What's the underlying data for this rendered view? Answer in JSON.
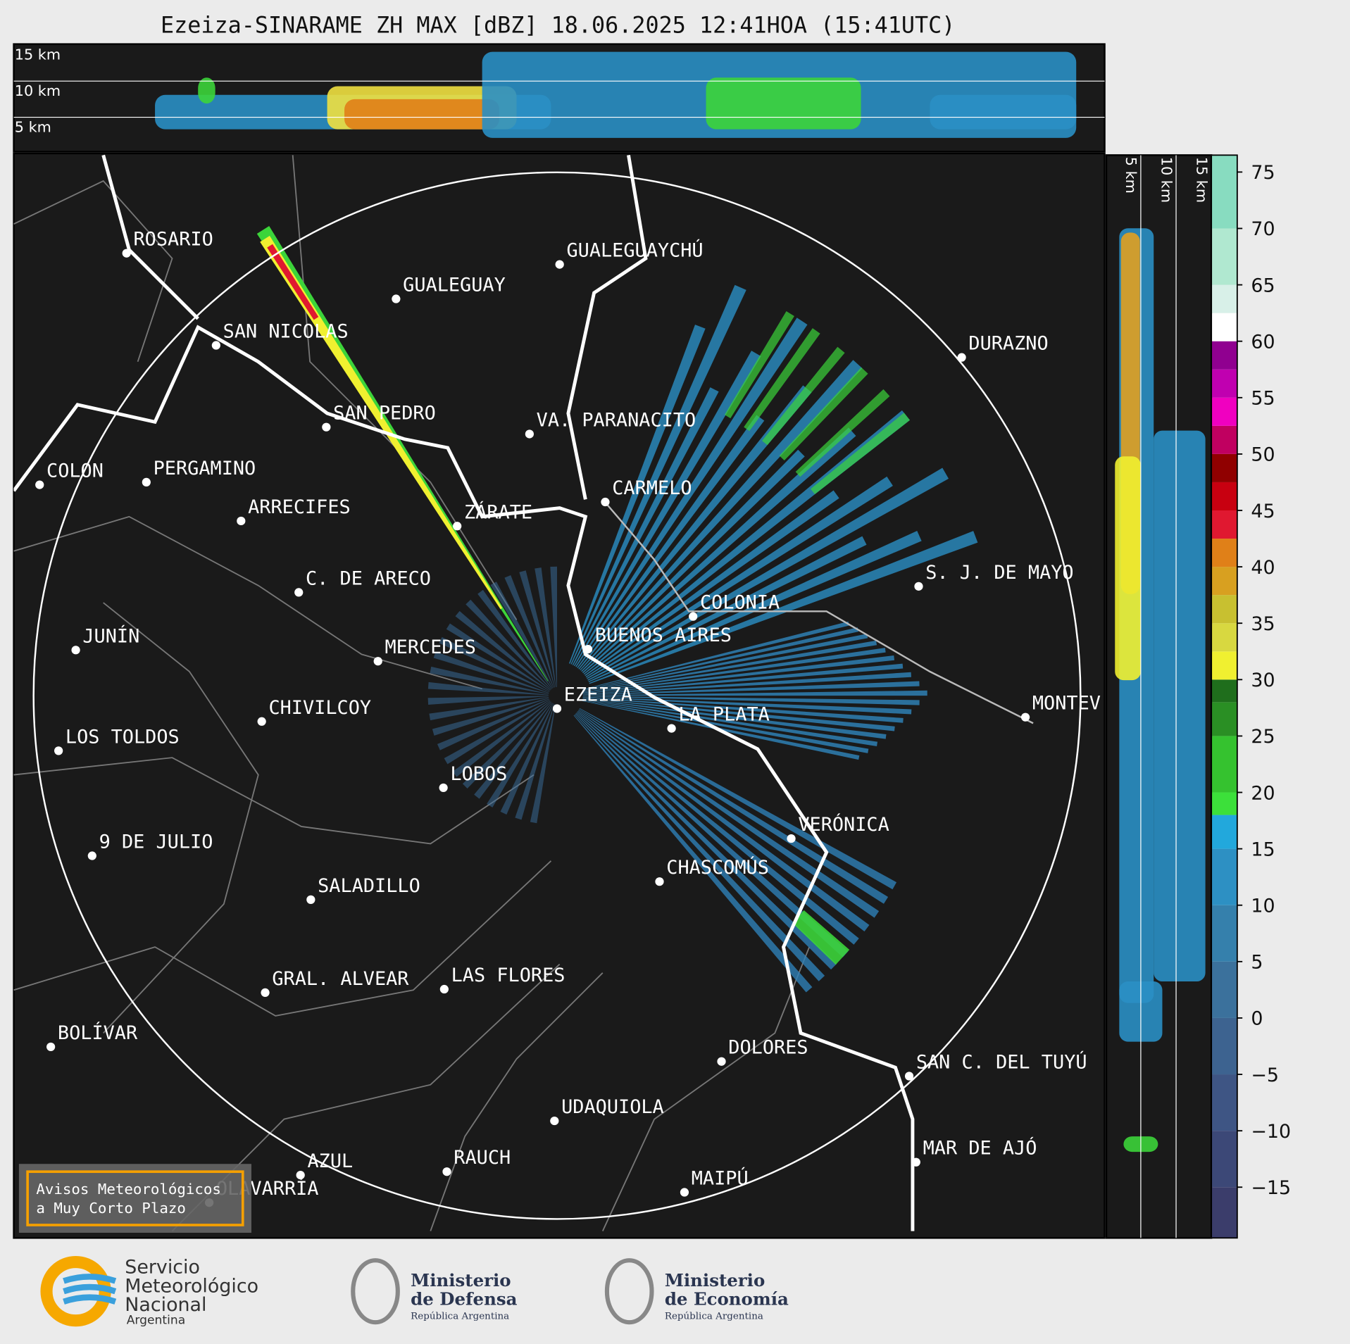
{
  "title": "Ezeiza-SINARAME ZH MAX [dBZ] 18.06.2025 12:41HOA (15:41UTC)",
  "top_section": {
    "labels": [
      "15 km",
      "10 km",
      "5 km"
    ]
  },
  "side_section": {
    "labels": [
      "5 km",
      "10 km",
      "15 km"
    ]
  },
  "cities": [
    "ROSARIO",
    "GUALEGUAYCHÚ",
    "GUALEGUAY",
    "SAN NICOLAS",
    "DURAZNO",
    "SAN PEDRO",
    "VA. PARANACITO",
    "COLON",
    "PERGAMINO",
    "CARMELO",
    "ARRECIFES",
    "ZÁRATE",
    "S. J. DE MAYO",
    "C. DE ARECO",
    "COLONIA",
    "BUENOS AIRES",
    "JUNÍN",
    "MERCEDES",
    "EZEIZA",
    "MONTEV",
    "CHIVILCOY",
    "LA PLATA",
    "LOS TOLDOS",
    "LOBOS",
    "VERÓNICA",
    "9 DE JULIO",
    "CHASCOMÚS",
    "SALADILLO",
    "GRAL. ALVEAR",
    "LAS FLORES",
    "BOLÍVAR",
    "DOLORES",
    "SAN C. DEL TUYÚ",
    "UDAQUIOLA",
    "MAR DE AJÓ",
    "AZUL",
    "RAUCH",
    "OLAVARRÍA",
    "MAIPÚ"
  ],
  "notice": [
    "Avisos Meteorológicos",
    "a Muy Corto Plazo"
  ],
  "colorbar": {
    "ylim": [
      -19.5,
      76.5
    ],
    "yticks": [
      {
        "value": -15,
        "label": "−15"
      },
      {
        "value": -10,
        "label": "−10"
      },
      {
        "value": -5,
        "label": "−5"
      },
      0,
      5,
      10,
      15,
      20,
      25,
      30,
      35,
      40,
      45,
      50,
      55,
      60,
      65,
      70,
      75
    ],
    "bounds": [
      -19.5,
      -15,
      -10,
      -5,
      0,
      5,
      10,
      15,
      18,
      20,
      25,
      28,
      30,
      32.5,
      35,
      37.5,
      40,
      42.5,
      45,
      47.5,
      50,
      52.5,
      55,
      57.5,
      60,
      62.5,
      65,
      70,
      76.5
    ],
    "colors": [
      "#3b3d6b",
      "#3c4877",
      "#3e5584",
      "#3d6390",
      "#3b719c",
      "#3580ac",
      "#2d90c3",
      "#22a8dc",
      "#3ce03a",
      "#35c22f",
      "#2a8f24",
      "#1f6e1c",
      "#f0f030",
      "#d8d840",
      "#c8c030",
      "#d8a020",
      "#e08018",
      "#e01830",
      "#c80010",
      "#900000",
      "#c00060",
      "#f000c0",
      "#c000b0",
      "#900090",
      "#ffffff",
      "#d8f0e8",
      "#b0e8d0",
      "#88dcc0"
    ]
  },
  "logos": {
    "smn": [
      "Servicio",
      "Meteorológico",
      "Nacional",
      "Argentina"
    ],
    "defensa": [
      "Ministerio",
      "de Defensa",
      "República Argentina"
    ],
    "economia": [
      "Ministerio",
      "de Economía",
      "República Argentina"
    ]
  }
}
